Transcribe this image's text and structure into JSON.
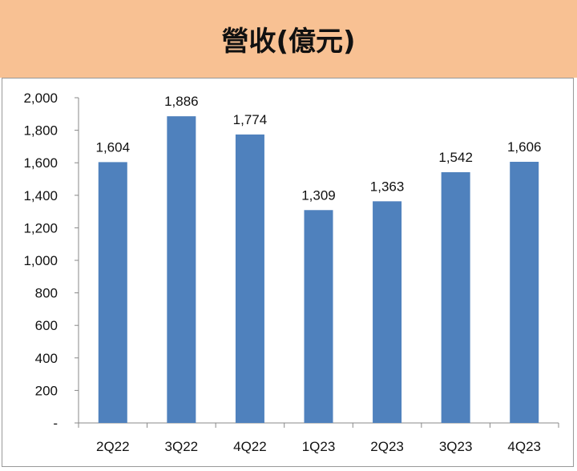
{
  "chart_data": {
    "type": "bar",
    "title": "營收(億元)",
    "categories": [
      "2Q22",
      "3Q22",
      "4Q22",
      "1Q23",
      "2Q23",
      "3Q23",
      "4Q23"
    ],
    "values": [
      1604,
      1886,
      1774,
      1309,
      1363,
      1542,
      1606
    ],
    "data_labels": [
      "1,604",
      "1,886",
      "1,774",
      "1,309",
      "1,363",
      "1,542",
      "1,606"
    ],
    "yticks": [
      0,
      200,
      400,
      600,
      800,
      1000,
      1200,
      1400,
      1600,
      1800,
      2000
    ],
    "ytick_labels": [
      "-",
      "200",
      "400",
      "600",
      "800",
      "1,000",
      "1,200",
      "1,400",
      "1,600",
      "1,800",
      "2,000"
    ],
    "ylim": [
      0,
      2000
    ],
    "xlabel": "",
    "ylabel": "",
    "grid": false,
    "bar_color": "#4F81BD",
    "header_color": "#F8C193"
  }
}
